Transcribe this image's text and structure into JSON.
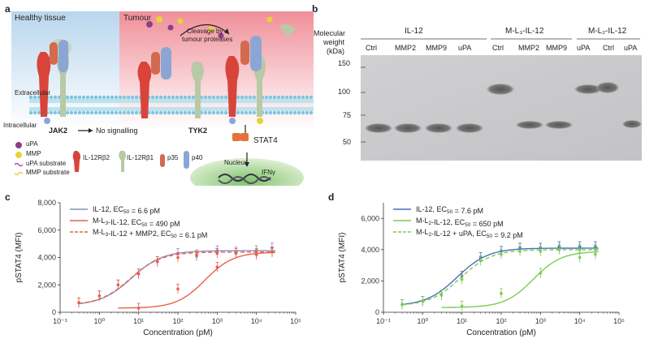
{
  "panel_letters": [
    "a",
    "b",
    "c",
    "d"
  ],
  "panel_a": {
    "healthy_label": "Healthy tissue",
    "tumour_label": "Tumour",
    "cleavage_label_1": "Cleavage by",
    "cleavage_label_2": "tumour proteases",
    "extracellular": "Extracellular",
    "intracellular": "Intracellular",
    "jak2": "JAK2",
    "no_signalling": "No signalling",
    "tyk2": "TYK2",
    "stat4": "STAT4",
    "nucleus": "Nucleus",
    "ifng": "IFNγ",
    "legend": [
      "uPA",
      "MMP",
      "uPA substrate",
      "MMP substrate"
    ],
    "receptor_labels": [
      "IL-12Rβ2",
      "IL-12Rβ1",
      "p35",
      "p40"
    ],
    "colors": {
      "healthy_bg": "#cfe3f3",
      "tumour_bg": "#f6b8be",
      "il12rb2": "#d9443a",
      "il12rb1": "#b9c9a6",
      "p35": "#d26a4f",
      "p40": "#8ba6d4",
      "upa": "#8e3f86",
      "mmp": "#e4d43a"
    }
  },
  "panel_b": {
    "y_title": [
      "Molecular",
      "weight",
      "(kDa)"
    ],
    "markers": [
      "150",
      "100",
      "75",
      "50"
    ],
    "groups": [
      {
        "name": "IL-12",
        "lanes": [
          "Ctrl",
          "MMP2",
          "MMP9",
          "uPA"
        ]
      },
      {
        "name": "M-L3-IL-12",
        "lanes": [
          "Ctrl",
          "MMP2",
          "MMP9",
          "uPA"
        ]
      },
      {
        "name": "M-L2-IL-12",
        "lanes": [
          "Ctrl",
          "uPA"
        ]
      }
    ],
    "group_labels": [
      "IL-12",
      "M-L₃-IL-12",
      "M-L₂-IL-12"
    ]
  },
  "chart_data": [
    {
      "type": "line",
      "panel": "c",
      "xlabel": "Concentration (pM)",
      "ylabel": "pSTAT4 (MFI)",
      "xscale": "log",
      "xlim": [
        0.1,
        100000
      ],
      "ylim": [
        0,
        8000
      ],
      "x_ticks": [
        "10⁻¹",
        "10⁰",
        "10¹",
        "10²",
        "10³",
        "10⁴",
        "10⁵"
      ],
      "y_ticks": [
        "0",
        "2,000",
        "4,000",
        "6,000",
        "8,000"
      ],
      "legend_position": "top-left",
      "series": [
        {
          "name": "IL-12, EC50 = 6.6 pM",
          "color": "#8a8dbd",
          "dash": false,
          "bottom": 500,
          "top": 4500,
          "ec50": 6.6,
          "hill": 1.1,
          "x": [
            0.3,
            1,
            3,
            10,
            30,
            100,
            300,
            1000,
            3000,
            10000,
            25000
          ],
          "y": [
            700,
            1200,
            2000,
            2800,
            3700,
            4300,
            4100,
            4500,
            4400,
            4500,
            4700
          ]
        },
        {
          "name": "M-L3-IL-12, EC50 = 490 pM",
          "color": "#e8604c",
          "dash": false,
          "bottom": 300,
          "top": 4400,
          "ec50": 490,
          "hill": 1.2,
          "x": [
            10,
            100,
            1000,
            10000,
            25000
          ],
          "y": [
            300,
            1700,
            3300,
            4200,
            4400
          ]
        },
        {
          "name": "M-L3-IL-12 + MMP2, EC50 = 6.1 pM",
          "color": "#e8604c",
          "dash": true,
          "bottom": 500,
          "top": 4400,
          "ec50": 6.1,
          "hill": 1.1,
          "x": [
            0.3,
            1,
            3,
            10,
            30,
            100,
            300,
            1000,
            3000,
            10000,
            25000
          ],
          "y": [
            700,
            1200,
            2000,
            2800,
            3700,
            4000,
            4200,
            4300,
            4300,
            4300,
            4400
          ]
        }
      ],
      "legend_labels": [
        {
          "pre": "IL-12, EC",
          "sub": "50",
          "post": " = 6.6 pM"
        },
        {
          "pre": "M-L",
          "sub1": "3",
          "mid": "-IL-12, EC",
          "sub": "50",
          "post": " = 490 pM"
        },
        {
          "pre": "M-L",
          "sub1": "3",
          "mid": "-IL-12 + MMP2, EC",
          "sub": "50",
          "post": " = 6.1 pM"
        }
      ]
    },
    {
      "type": "line",
      "panel": "d",
      "xlabel": "Concentration (pM)",
      "ylabel": "pSTAT4 (MFI)",
      "xscale": "log",
      "xlim": [
        0.1,
        100000
      ],
      "ylim": [
        0,
        7000
      ],
      "x_ticks": [
        "10⁻¹",
        "10⁰",
        "10¹",
        "10²",
        "10³",
        "10⁴",
        "10⁵"
      ],
      "y_ticks": [
        "0",
        "2,000",
        "4,000",
        "6,000"
      ],
      "legend_position": "top-left",
      "series": [
        {
          "name": "IL-12, EC50 = 7.6 pM",
          "color": "#4a6fb5",
          "dash": false,
          "bottom": 400,
          "top": 4100,
          "ec50": 7.6,
          "hill": 1.1,
          "x": [
            0.3,
            1,
            3,
            10,
            30,
            100,
            300,
            1000,
            3000,
            10000,
            25000
          ],
          "y": [
            500,
            700,
            1100,
            2300,
            3500,
            3900,
            4100,
            4100,
            4200,
            4200,
            4200
          ]
        },
        {
          "name": "M-L2-IL-12, EC50 = 650 pM",
          "color": "#7ccc55",
          "dash": false,
          "bottom": 300,
          "top": 3900,
          "ec50": 650,
          "hill": 1.2,
          "x": [
            10,
            100,
            1000,
            10000,
            25000
          ],
          "y": [
            400,
            1200,
            2500,
            3500,
            3700
          ]
        },
        {
          "name": "M-L2-IL-12 + uPA, EC50 = 9.2 pM",
          "color": "#7ccc55",
          "dash": true,
          "bottom": 400,
          "top": 4000,
          "ec50": 9.2,
          "hill": 1.1,
          "x": [
            0.3,
            1,
            3,
            10,
            30,
            100,
            300,
            1000,
            3000,
            10000,
            25000
          ],
          "y": [
            500,
            700,
            1100,
            2100,
            3300,
            3700,
            3900,
            3900,
            4000,
            4000,
            4000
          ]
        }
      ],
      "legend_labels": [
        {
          "pre": "IL-12, EC",
          "sub": "50",
          "post": " = 7.6 pM"
        },
        {
          "pre": "M-L",
          "sub1": "2",
          "mid": "-IL-12, EC",
          "sub": "50",
          "post": " = 650 pM"
        },
        {
          "pre": "M-L",
          "sub1": "2",
          "mid": "-IL-12 + uPA, EC",
          "sub": "50",
          "post": " = 9.2 pM"
        }
      ]
    }
  ]
}
